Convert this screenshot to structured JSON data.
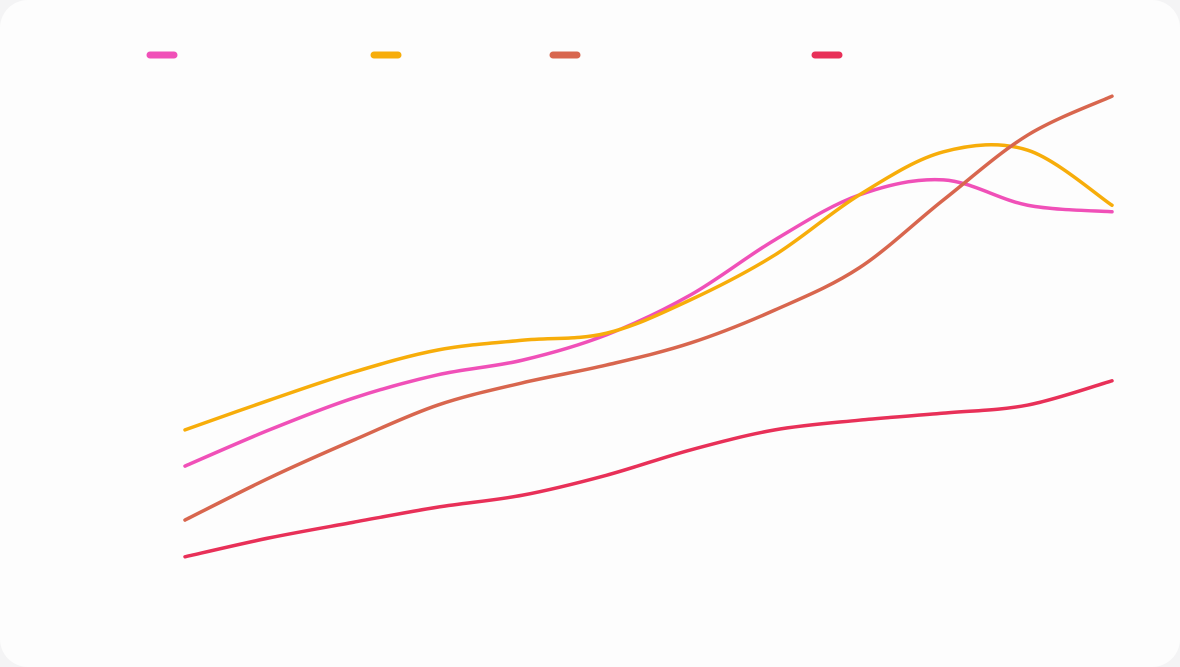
{
  "chart_data": {
    "type": "line",
    "categories": [
      null,
      null,
      null,
      null,
      null,
      null,
      null,
      null,
      null,
      null,
      null,
      null
    ],
    "ylim": [
      0,
      100
    ],
    "smooth": true,
    "grid": false,
    "legend": "top-left",
    "series": [
      {
        "color": "#f050b8",
        "values": [
          24.8,
          31.5,
          37.4,
          41.7,
          44.4,
          49.1,
          56.5,
          66.7,
          75.0,
          77.8,
          73.1,
          71.9
        ]
      },
      {
        "color": "#f7ad0a",
        "values": [
          31.5,
          37.0,
          42.2,
          46.3,
          48.1,
          49.4,
          55.6,
          63.9,
          75.0,
          83.0,
          83.3,
          73.1
        ]
      },
      {
        "color": "#d8664e",
        "values": [
          14.8,
          22.6,
          29.6,
          36.1,
          40.2,
          43.5,
          47.6,
          53.7,
          61.5,
          74.1,
          86.1,
          93.3
        ]
      },
      {
        "color": "#e83058",
        "values": [
          8.0,
          11.5,
          14.4,
          17.2,
          19.4,
          23.1,
          27.8,
          31.5,
          33.3,
          34.6,
          36.1,
          40.6
        ]
      }
    ]
  }
}
